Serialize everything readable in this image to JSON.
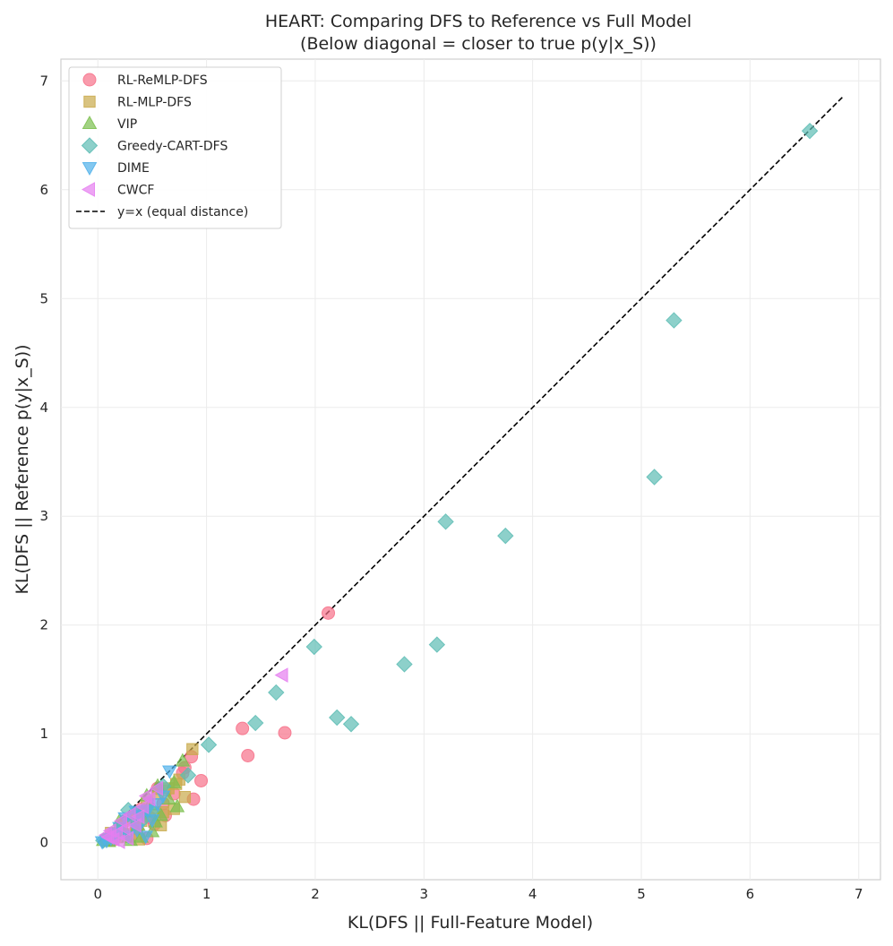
{
  "chart_data": {
    "type": "scatter",
    "title": [
      "HEART: Comparing DFS to Reference vs Full Model",
      "(Below diagonal = closer to true p(y|x_S))"
    ],
    "xlabel": "KL(DFS || Full-Feature Model)",
    "ylabel": "KL(DFS || Reference p(y|x_S))",
    "xlim": [
      -0.34,
      7.2
    ],
    "ylim": [
      -0.34,
      7.2
    ],
    "xticks": [
      "0",
      "1",
      "2",
      "3",
      "4",
      "5",
      "6",
      "7"
    ],
    "yticks": [
      "0",
      "1",
      "2",
      "3",
      "4",
      "5",
      "6",
      "7"
    ],
    "grid": true,
    "legend_position": "top-left",
    "reference_line": {
      "label": "y=x (equal distance)",
      "from": [
        0,
        0
      ],
      "to": [
        6.85,
        6.85
      ],
      "style": "dashed",
      "color": "#000000"
    },
    "series": [
      {
        "name": "RL-ReMLP-DFS",
        "marker": "circle",
        "color": "#f77189",
        "points": [
          [
            2.12,
            2.11
          ],
          [
            1.33,
            1.05
          ],
          [
            1.38,
            0.8
          ],
          [
            1.72,
            1.01
          ],
          [
            0.95,
            0.57
          ],
          [
            0.88,
            0.4
          ],
          [
            0.86,
            0.79
          ],
          [
            0.8,
            0.69
          ],
          [
            0.78,
            0.64
          ],
          [
            0.7,
            0.45
          ],
          [
            0.6,
            0.36
          ],
          [
            0.55,
            0.5
          ],
          [
            0.48,
            0.23
          ],
          [
            0.45,
            0.04
          ],
          [
            0.4,
            0.31
          ],
          [
            0.36,
            0.13
          ],
          [
            0.3,
            0.06
          ],
          [
            0.25,
            0.2
          ],
          [
            0.2,
            0.1
          ],
          [
            0.15,
            0.03
          ],
          [
            0.62,
            0.25
          ],
          [
            0.52,
            0.17
          ],
          [
            0.42,
            0.27
          ],
          [
            0.12,
            0.05
          ]
        ]
      },
      {
        "name": "RL-MLP-DFS",
        "marker": "square",
        "color": "#c9a94a",
        "points": [
          [
            0.87,
            0.86
          ],
          [
            0.8,
            0.42
          ],
          [
            0.75,
            0.58
          ],
          [
            0.7,
            0.31
          ],
          [
            0.65,
            0.5
          ],
          [
            0.6,
            0.28
          ],
          [
            0.58,
            0.16
          ],
          [
            0.55,
            0.45
          ],
          [
            0.5,
            0.25
          ],
          [
            0.45,
            0.37
          ],
          [
            0.4,
            0.2
          ],
          [
            0.38,
            0.03
          ],
          [
            0.35,
            0.14
          ],
          [
            0.3,
            0.22
          ],
          [
            0.27,
            0.08
          ],
          [
            0.22,
            0.16
          ],
          [
            0.18,
            0.05
          ],
          [
            0.12,
            0.09
          ],
          [
            0.08,
            0.02
          ],
          [
            0.72,
            0.54
          ],
          [
            0.62,
            0.48
          ]
        ]
      },
      {
        "name": "VIP",
        "marker": "triangle-up",
        "color": "#7bbf4e",
        "points": [
          [
            0.78,
            0.75
          ],
          [
            0.73,
            0.33
          ],
          [
            0.7,
            0.55
          ],
          [
            0.65,
            0.4
          ],
          [
            0.58,
            0.25
          ],
          [
            0.55,
            0.52
          ],
          [
            0.5,
            0.1
          ],
          [
            0.48,
            0.35
          ],
          [
            0.43,
            0.28
          ],
          [
            0.4,
            0.05
          ],
          [
            0.37,
            0.16
          ],
          [
            0.32,
            0.26
          ],
          [
            0.28,
            0.05
          ],
          [
            0.25,
            0.11
          ],
          [
            0.2,
            0.2
          ],
          [
            0.15,
            0.08
          ],
          [
            0.1,
            0.01
          ],
          [
            0.05,
            0.02
          ],
          [
            0.3,
            0.02
          ],
          [
            0.53,
            0.19
          ],
          [
            0.45,
            0.43
          ]
        ]
      },
      {
        "name": "Greedy-CART-DFS",
        "marker": "diamond",
        "color": "#5cbcb4",
        "points": [
          [
            6.55,
            6.54
          ],
          [
            5.3,
            4.8
          ],
          [
            5.12,
            3.36
          ],
          [
            3.75,
            2.82
          ],
          [
            3.2,
            2.95
          ],
          [
            3.12,
            1.82
          ],
          [
            2.82,
            1.64
          ],
          [
            2.33,
            1.09
          ],
          [
            2.2,
            1.15
          ],
          [
            1.99,
            1.8
          ],
          [
            1.64,
            1.38
          ],
          [
            1.45,
            1.1
          ],
          [
            1.02,
            0.9
          ],
          [
            0.83,
            0.62
          ],
          [
            0.6,
            0.52
          ],
          [
            0.5,
            0.3
          ],
          [
            0.4,
            0.2
          ],
          [
            0.28,
            0.3
          ],
          [
            0.22,
            0.1
          ],
          [
            0.15,
            0.05
          ],
          [
            0.05,
            0.02
          ]
        ]
      },
      {
        "name": "DIME",
        "marker": "triangle-down",
        "color": "#4fb0ea",
        "points": [
          [
            0.66,
            0.66
          ],
          [
            0.6,
            0.43
          ],
          [
            0.55,
            0.36
          ],
          [
            0.5,
            0.21
          ],
          [
            0.46,
            0.3
          ],
          [
            0.4,
            0.25
          ],
          [
            0.36,
            0.12
          ],
          [
            0.32,
            0.19
          ],
          [
            0.28,
            0.06
          ],
          [
            0.25,
            0.23
          ],
          [
            0.2,
            0.14
          ],
          [
            0.16,
            0.09
          ],
          [
            0.12,
            0.04
          ],
          [
            0.08,
            0.02
          ],
          [
            0.04,
            0.01
          ],
          [
            0.44,
            0.06
          ],
          [
            0.35,
            0.29
          ]
        ]
      },
      {
        "name": "CWCF",
        "marker": "triangle-left",
        "color": "#e57ef0",
        "points": [
          [
            1.7,
            1.54
          ],
          [
            0.55,
            0.5
          ],
          [
            0.48,
            0.4
          ],
          [
            0.45,
            0.43
          ],
          [
            0.42,
            0.33
          ],
          [
            0.38,
            0.24
          ],
          [
            0.35,
            0.16
          ],
          [
            0.3,
            0.26
          ],
          [
            0.25,
            0.13
          ],
          [
            0.22,
            0.2
          ],
          [
            0.18,
            0.09
          ],
          [
            0.15,
            0.03
          ],
          [
            0.12,
            0.11
          ],
          [
            0.1,
            0.05
          ],
          [
            0.08,
            0.07
          ],
          [
            0.28,
            0.04
          ],
          [
            0.2,
            0.01
          ]
        ]
      }
    ]
  }
}
